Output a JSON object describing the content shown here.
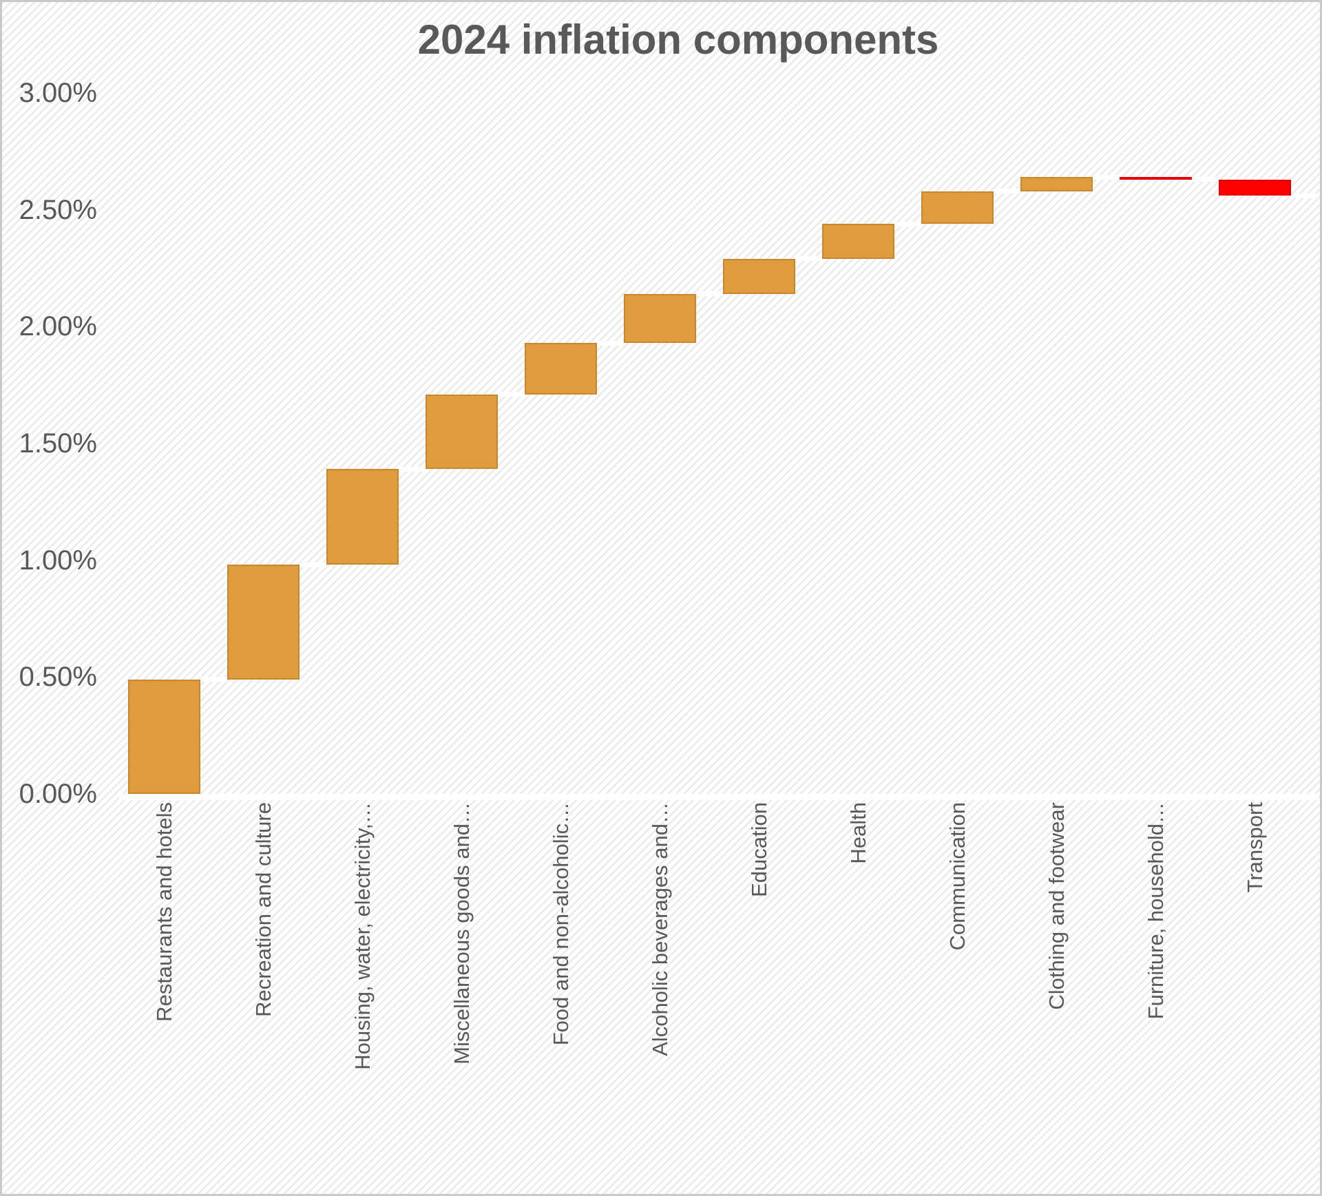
{
  "chart_data": {
    "type": "bar",
    "subtype": "waterfall",
    "title": "2024 inflation components",
    "categories": [
      "Restaurants and hotels",
      "Recreation and culture",
      "Housing, water, electricity,…",
      "Miscellaneous goods and…",
      "Food and non-alcoholic…",
      "Alcoholic beverages and…",
      "Education",
      "Health",
      "Communication",
      "Clothing and footwear",
      "Furniture, household…",
      "Transport"
    ],
    "values": [
      0.49,
      0.49,
      0.41,
      0.32,
      0.22,
      0.21,
      0.15,
      0.15,
      0.14,
      0.06,
      -0.01,
      -0.07
    ],
    "cumulative": [
      0.49,
      0.98,
      1.39,
      1.71,
      1.93,
      2.14,
      2.29,
      2.44,
      2.58,
      2.64,
      2.63,
      2.56
    ],
    "final_cumulative": 2.56,
    "unit": "percent",
    "xlabel": "",
    "ylabel": "",
    "ylim": [
      0,
      3
    ],
    "y_ticks": [
      {
        "label": "3.00%",
        "value": 3.0
      },
      {
        "label": "2.50%",
        "value": 2.5
      },
      {
        "label": "2.00%",
        "value": 2.0
      },
      {
        "label": "1.50%",
        "value": 1.5
      },
      {
        "label": "1.00%",
        "value": 1.0
      },
      {
        "label": "0.50%",
        "value": 0.5
      },
      {
        "label": "0.00%",
        "value": 0.0
      }
    ],
    "grid": false,
    "legend": false,
    "colors": {
      "increase": "#DF9B3C",
      "decrease": "#FF0000",
      "connector": "#FFFFFF",
      "text": "#595959",
      "title": "#595959",
      "background_stripe": "#ECECEC",
      "background_base": "#FFFFFF",
      "border": "#C9C9C9"
    }
  }
}
